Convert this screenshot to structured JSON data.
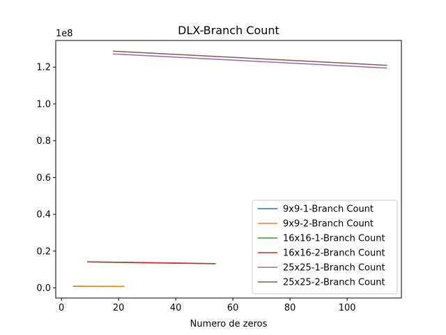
{
  "chart_data": {
    "type": "line",
    "title": "DLX-Branch Count",
    "xlabel": "Numero de zeros",
    "ylabel": "",
    "y_offset_label": "1e8",
    "xlim": [
      -2,
      119
    ],
    "ylim": [
      -5500000,
      134500000
    ],
    "x_ticks": [
      0,
      20,
      40,
      60,
      80,
      100
    ],
    "x_tick_labels": [
      "0",
      "20",
      "40",
      "60",
      "80",
      "100"
    ],
    "y_ticks": [
      0,
      20000000,
      40000000,
      60000000,
      80000000,
      100000000,
      120000000
    ],
    "y_tick_labels": [
      "0.0",
      "0.2",
      "0.4",
      "0.6",
      "0.8",
      "1.0",
      "1.2"
    ],
    "grid": false,
    "legend_position": "lower-right",
    "series": [
      {
        "name": "9x9-1-Branch Count",
        "color": "#1f77b4",
        "x": [
          4,
          22
        ],
        "y": [
          900000,
          800000
        ]
      },
      {
        "name": "9x9-2-Branch Count",
        "color": "#ff7f0e",
        "x": [
          4,
          22
        ],
        "y": [
          950000,
          850000
        ]
      },
      {
        "name": "16x16-1-Branch Count",
        "color": "#2ca02c",
        "x": [
          9,
          54
        ],
        "y": [
          14100000,
          13100000
        ]
      },
      {
        "name": "16x16-2-Branch Count",
        "color": "#d62728",
        "x": [
          9,
          54
        ],
        "y": [
          14200000,
          13200000
        ]
      },
      {
        "name": "25x25-1-Branch Count",
        "color": "#9467bd",
        "x": [
          18,
          114
        ],
        "y": [
          127200000,
          119500000
        ]
      },
      {
        "name": "25x25-2-Branch Count",
        "color": "#8c564b",
        "x": [
          18,
          114
        ],
        "y": [
          128700000,
          121000000
        ]
      }
    ]
  }
}
